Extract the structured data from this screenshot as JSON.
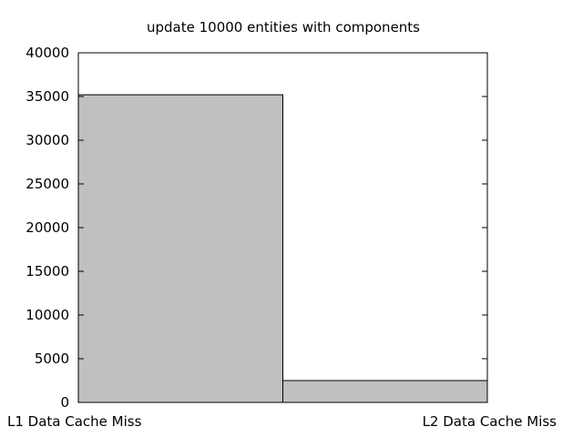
{
  "chart_data": {
    "type": "bar",
    "title": "update 10000 entities with components",
    "xlabel": "",
    "ylabel": "",
    "categories": [
      "L1 Data Cache Miss",
      "L2 Data Cache Miss"
    ],
    "values": [
      35200,
      2500
    ],
    "ylim": [
      0,
      40000
    ],
    "yticks": [
      0,
      5000,
      10000,
      15000,
      20000,
      25000,
      30000,
      35000,
      40000
    ],
    "grid": false,
    "legend": "none",
    "colors": {
      "bar_fill": "#c0c0c0",
      "bar_stroke": "#000000",
      "axis": "#000000",
      "background": "#ffffff"
    }
  }
}
